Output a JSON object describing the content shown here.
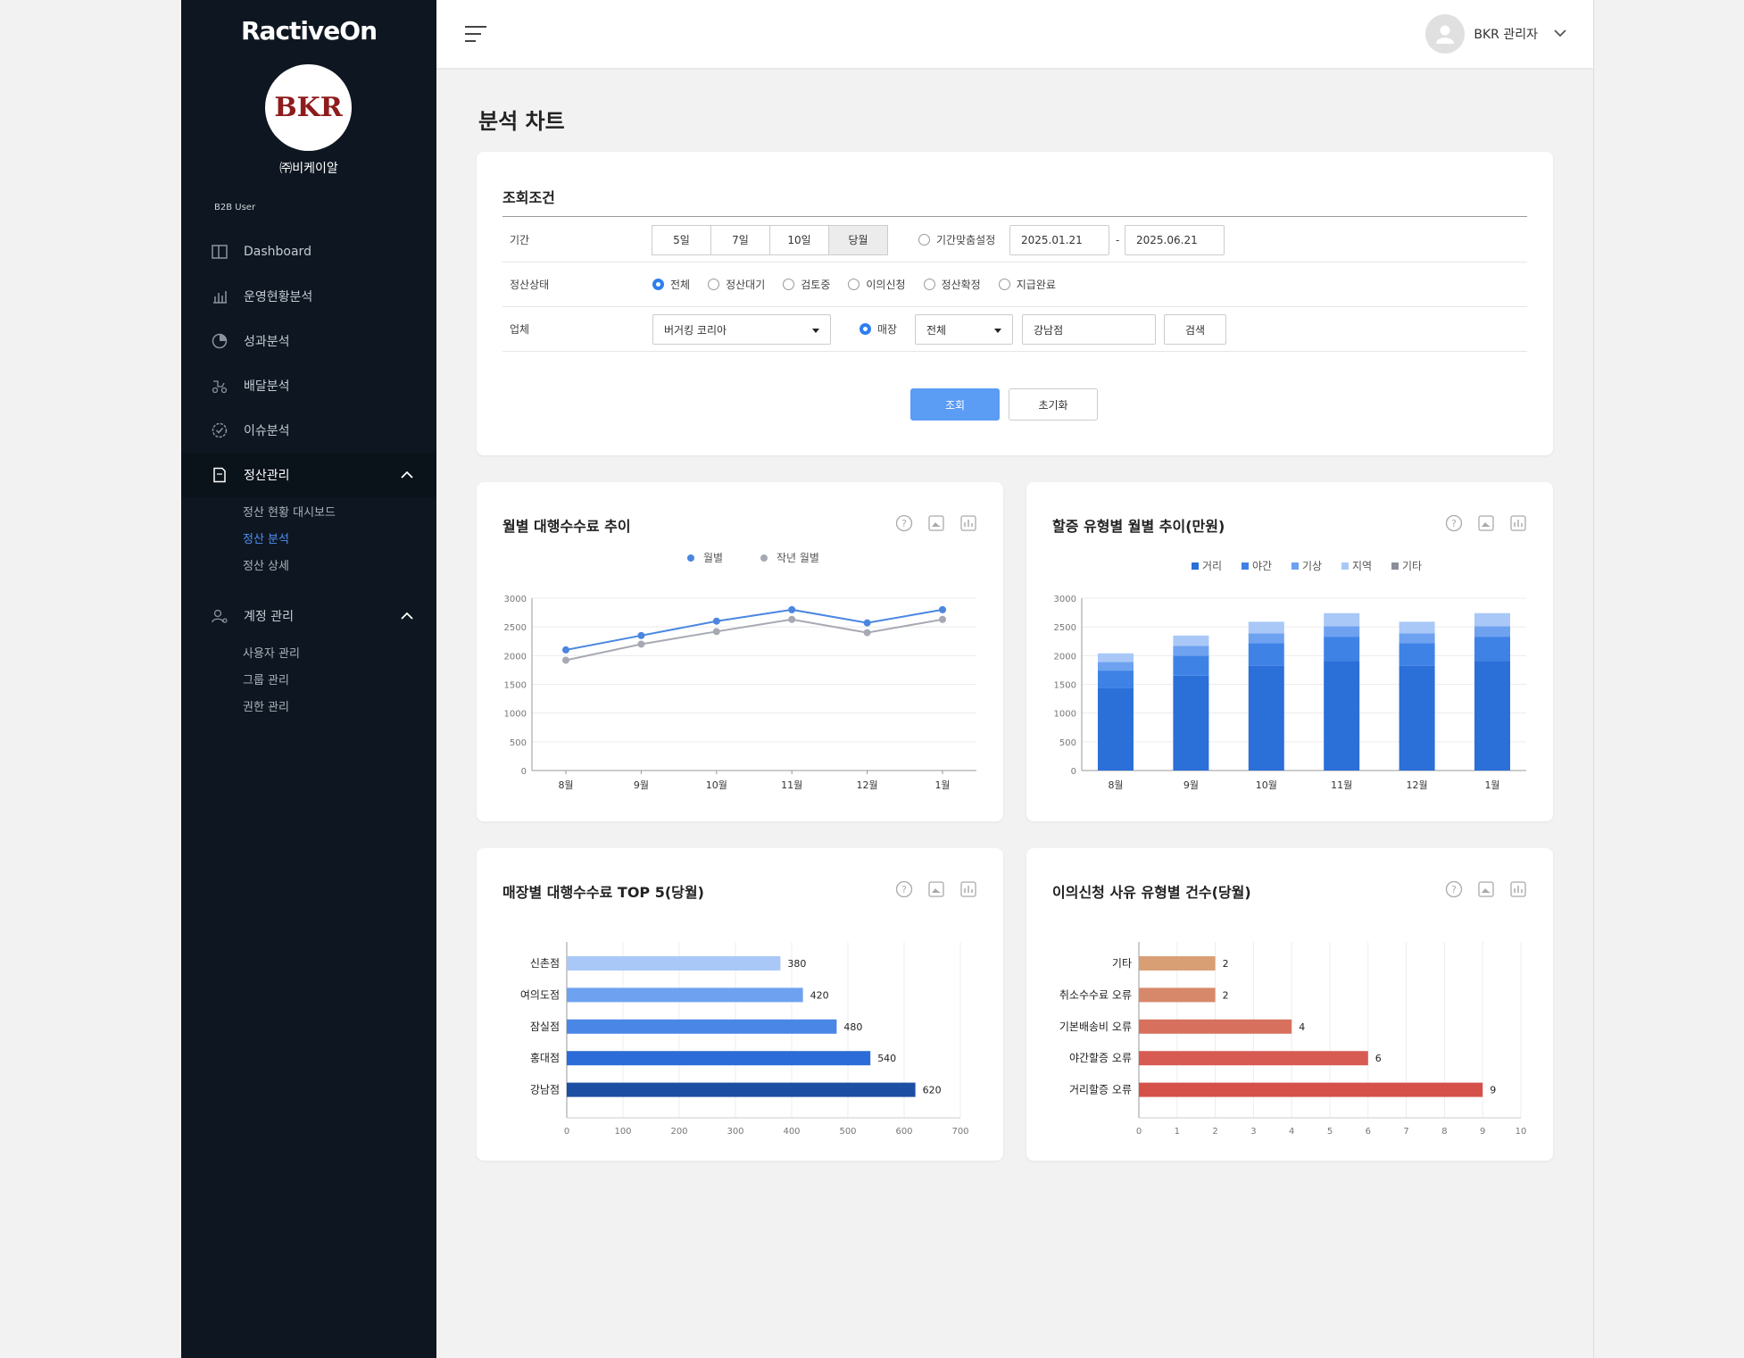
{
  "brand": {
    "logo": "RactiveOn",
    "avatar_text": "BKR",
    "company": "㈜비케이알",
    "role": "B2B User"
  },
  "sidebar": {
    "items": [
      {
        "label": "Dashboard"
      },
      {
        "label": "운영현황분석"
      },
      {
        "label": "성과분석"
      },
      {
        "label": "배달분석"
      },
      {
        "label": "이슈분석"
      },
      {
        "label": "정산관리"
      },
      {
        "label": "계정 관리"
      }
    ],
    "settle_sub": [
      "정산 현황 대시보드",
      "정산 분석",
      "정산 상세"
    ],
    "account_sub": [
      "사용자 관리",
      "그룹 관리",
      "권한 관리"
    ]
  },
  "header": {
    "user_name": "BKR 관리자"
  },
  "page": {
    "title": "분석 차트"
  },
  "filter": {
    "title": "조회조건",
    "period_label": "기간",
    "period_options": [
      "5일",
      "7일",
      "10일",
      "당월"
    ],
    "custom_period": "기간맞춤설정",
    "date_from": "2025.01.21",
    "date_sep": "-",
    "date_to": "2025.06.21",
    "status_label": "정산상태",
    "status_options": [
      "전체",
      "정산대기",
      "검토중",
      "이의신청",
      "정산확정",
      "지급완료"
    ],
    "vendor_label": "업체",
    "vendor_value": "버거킹 코리아",
    "store_radio": "매장",
    "store_select": "전체",
    "store_value": "강남점",
    "search_button": "검색",
    "submit_button": "조회",
    "reset_button": "초기화"
  },
  "accent": "#5b9cf5",
  "chart_data": [
    {
      "type": "line",
      "title": "월별 대행수수료 추이",
      "categories": [
        "8월",
        "9월",
        "10월",
        "11월",
        "12월",
        "1월"
      ],
      "series": [
        {
          "name": "월별",
          "values": [
            2100,
            2350,
            2600,
            2800,
            2570,
            2800
          ],
          "color": "#4a86e0"
        },
        {
          "name": "작년 월별",
          "values": [
            1920,
            2200,
            2420,
            2630,
            2400,
            2630
          ],
          "color": "#a6a9b3"
        }
      ],
      "yticks": [
        0,
        500,
        1000,
        1500,
        2000,
        2500,
        3000
      ],
      "ylim": [
        0,
        3000
      ]
    },
    {
      "type": "bar",
      "stacked": true,
      "title": "할증 유형별 월별 추이(만원)",
      "categories": [
        "8월",
        "9월",
        "10월",
        "11월",
        "12월",
        "1월"
      ],
      "series": [
        {
          "name": "거리",
          "values": [
            1440,
            1650,
            1820,
            1910,
            1820,
            1910
          ],
          "color": "#2b6fd8"
        },
        {
          "name": "야간",
          "values": [
            300,
            350,
            400,
            420,
            400,
            420
          ],
          "color": "#3f82e6"
        },
        {
          "name": "기상",
          "values": [
            150,
            170,
            170,
            180,
            170,
            180
          ],
          "color": "#6ea2f0"
        },
        {
          "name": "지역",
          "values": [
            150,
            180,
            200,
            230,
            200,
            230
          ],
          "color": "#a9c8f7"
        },
        {
          "name": "기타",
          "values": [
            0,
            0,
            0,
            0,
            0,
            0
          ],
          "color": "#8a8f99"
        }
      ],
      "yticks": [
        0,
        500,
        1000,
        1500,
        2000,
        2500,
        3000
      ],
      "ylim": [
        0,
        3000
      ]
    },
    {
      "type": "bar",
      "orientation": "horizontal",
      "title": "매장별 대행수수료 TOP 5(당월)",
      "categories": [
        "신촌점",
        "여의도점",
        "잠실점",
        "홍대점",
        "강남점"
      ],
      "values": [
        380,
        420,
        480,
        540,
        620
      ],
      "colors": [
        "#a9c8f7",
        "#6ea2f0",
        "#4a86e6",
        "#2c6cd8",
        "#1c4ea3"
      ],
      "xticks": [
        0,
        100,
        200,
        300,
        400,
        500,
        600,
        700
      ],
      "xlim": [
        0,
        700
      ]
    },
    {
      "type": "bar",
      "orientation": "horizontal",
      "title": "이의신청 사유 유형별 건수(당월)",
      "categories": [
        "기타",
        "취소수수료 오류",
        "기본배송비 오류",
        "야간할증 오류",
        "거리할증 오류"
      ],
      "values": [
        2,
        2,
        4,
        6,
        9
      ],
      "colors": [
        "#d89e74",
        "#d8886a",
        "#d7715e",
        "#d75b53",
        "#d6504a"
      ],
      "xticks": [
        0,
        1,
        2,
        3,
        4,
        5,
        6,
        7,
        8,
        9,
        10
      ],
      "xlim": [
        0,
        10
      ]
    }
  ]
}
